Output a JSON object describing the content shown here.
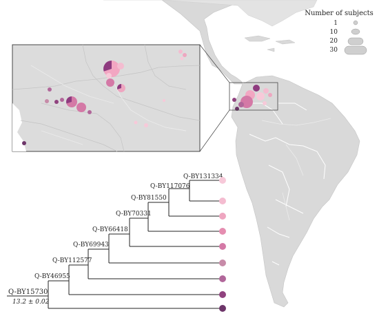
{
  "legend": {
    "title": "Number of subjects",
    "entries": [
      {
        "label": "1",
        "value": 1
      },
      {
        "label": "10",
        "value": 10
      },
      {
        "label": "20",
        "value": 20
      },
      {
        "label": "30",
        "value": 30
      }
    ]
  },
  "tree": {
    "root_label": "Q-BY15730",
    "root_date": "13.2 ± 0.02",
    "nodes": [
      "Q-BY46955",
      "Q-BY112577",
      "Q-BY69943",
      "Q-BY66418",
      "Q-BY70331",
      "Q-BY81550",
      "Q-BY117076",
      "Q-BY131334"
    ]
  },
  "colors": {
    "land": "#d9d9d9",
    "ocean": "#ffffff",
    "inset_land": "#dcdcdc",
    "leaf_colors": [
      "#f7c9d9",
      "#f4bcd0",
      "#eea6c0",
      "#e58db0",
      "#d479a6",
      "#c78ba8",
      "#b1679a",
      "#90427f",
      "#6d3569"
    ]
  },
  "pie_markers": [
    {
      "colors": [
        "#f2a6c2",
        "#8e3b7f"
      ],
      "fractions": [
        0.55,
        0.45
      ],
      "subjects": 14
    },
    {
      "colors": [
        "#f4bcd0",
        "#b1679a"
      ],
      "fractions": [
        0.7,
        0.3
      ],
      "subjects": 10
    },
    {
      "colors": [
        "#d479a6"
      ],
      "fractions": [
        1
      ],
      "subjects": 25
    },
    {
      "colors": [
        "#f7c9d9"
      ],
      "fractions": [
        1
      ],
      "subjects": 18
    },
    {
      "colors": [
        "#6d3569"
      ],
      "fractions": [
        1
      ],
      "subjects": 3
    },
    {
      "colors": [
        "#eea6c0",
        "#8e3b7f"
      ],
      "fractions": [
        0.6,
        0.4
      ],
      "subjects": 6
    }
  ]
}
